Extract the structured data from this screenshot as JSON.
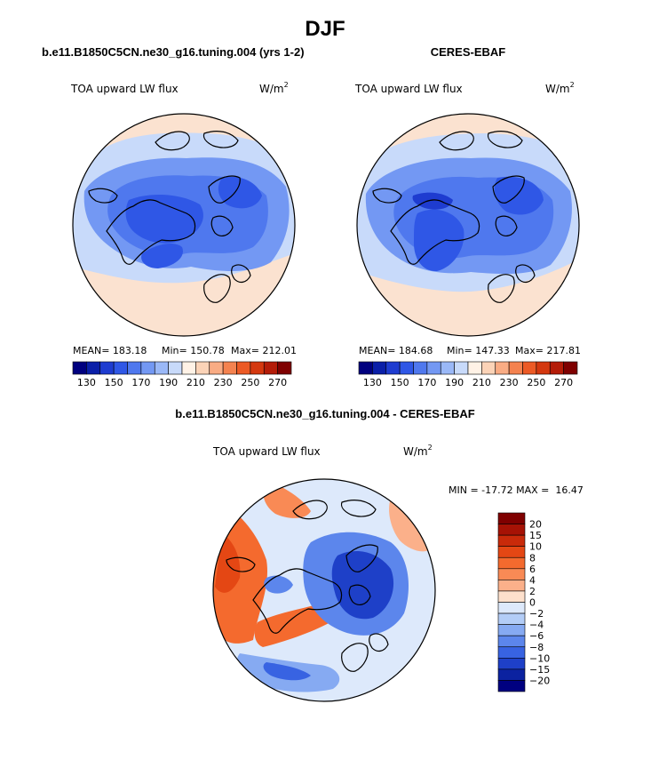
{
  "figure": {
    "title": "DJF",
    "left_heading": "b.e11.B1850C5CN.ne30_g16.tuning.004 (yrs 1-2)",
    "right_heading": "CERES-EBAF",
    "diff_heading": "b.e11.B1850C5CN.ne30_g16.tuning.004 - CERES-EBAF"
  },
  "chart_data": [
    {
      "type": "heatmap",
      "name": "model",
      "title": "TOA upward LW flux",
      "units": "W/m",
      "units_exp": "2",
      "stats": {
        "mean": "MEAN= 183.18",
        "min": "Min= 150.78",
        "max": "Max= 212.01"
      },
      "stats_values": {
        "mean": 183.18,
        "min": 150.78,
        "max": 212.01
      },
      "levels": [
        130,
        140,
        150,
        160,
        170,
        180,
        190,
        200,
        210,
        220,
        230,
        240,
        250,
        260,
        270
      ],
      "tick_labels": [
        "130",
        "150",
        "170",
        "190",
        "210",
        "230",
        "250",
        "270"
      ],
      "colors": [
        "#00007f",
        "#0a1fa8",
        "#1e3cd0",
        "#2f57e6",
        "#4f78ee",
        "#7398f3",
        "#9ab8f7",
        "#c8dafa",
        "#fff2e6",
        "#fbd3b7",
        "#f9ac84",
        "#f4824f",
        "#ec5a25",
        "#d4380f",
        "#b41c08",
        "#7f0000"
      ]
    },
    {
      "type": "heatmap",
      "name": "observations",
      "title": "TOA upward LW flux",
      "units": "W/m",
      "units_exp": "2",
      "stats": {
        "mean": "MEAN= 184.68",
        "min": "Min= 147.33",
        "max": "Max= 217.81"
      },
      "stats_values": {
        "mean": 184.68,
        "min": 147.33,
        "max": 217.81
      },
      "levels": [
        130,
        140,
        150,
        160,
        170,
        180,
        190,
        200,
        210,
        220,
        230,
        240,
        250,
        260,
        270
      ],
      "tick_labels": [
        "130",
        "150",
        "170",
        "190",
        "210",
        "230",
        "250",
        "270"
      ],
      "colors": [
        "#00007f",
        "#0a1fa8",
        "#1e3cd0",
        "#2f57e6",
        "#4f78ee",
        "#7398f3",
        "#9ab8f7",
        "#c8dafa",
        "#fff2e6",
        "#fbd3b7",
        "#f9ac84",
        "#f4824f",
        "#ec5a25",
        "#d4380f",
        "#b41c08",
        "#7f0000"
      ]
    },
    {
      "type": "heatmap",
      "name": "difference",
      "title": "TOA upward LW flux",
      "units": "W/m",
      "units_exp": "2",
      "minmax_label": "MIN = -17.72 MAX =  16.47",
      "min": -17.72,
      "max": 16.47,
      "levels": [
        20,
        15,
        10,
        8,
        6,
        4,
        2,
        0,
        -2,
        -4,
        -6,
        -8,
        -10,
        -15,
        -20
      ],
      "tick_labels": [
        "20",
        "15",
        "10",
        "8",
        "6",
        "4",
        "2",
        "0",
        "−2",
        "−4",
        "−6",
        "−8",
        "−10",
        "−15",
        "−20"
      ],
      "colors": [
        "#7f0000",
        "#a61205",
        "#c92a0a",
        "#e44714",
        "#f46a2e",
        "#f98a55",
        "#fbb08a",
        "#fde0cc",
        "#dde9fb",
        "#b3cdf7",
        "#86aaf2",
        "#5c86ec",
        "#3863e2",
        "#1e40c8",
        "#0b22a0",
        "#000080"
      ]
    }
  ]
}
